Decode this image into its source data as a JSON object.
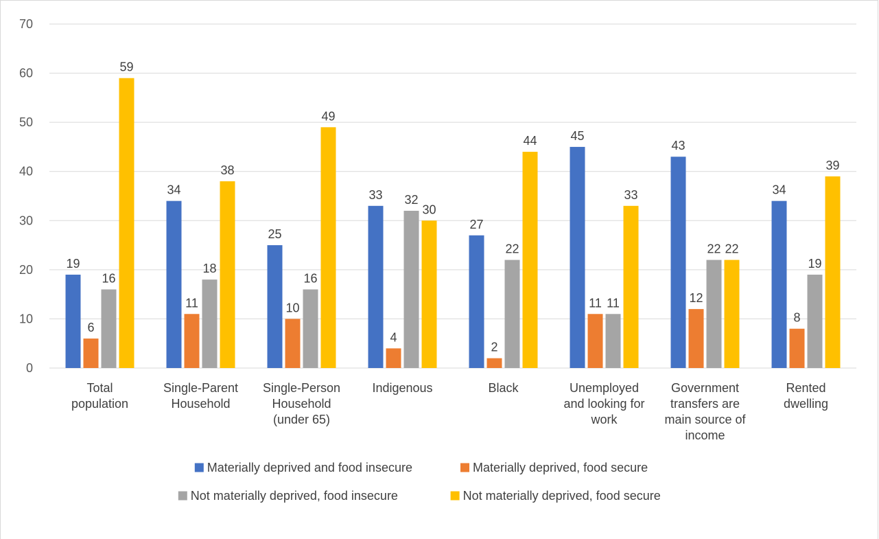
{
  "chart_data": {
    "type": "bar",
    "title": "",
    "xlabel": "",
    "ylabel": "",
    "ylim": [
      0,
      70
    ],
    "yticks": [
      0,
      10,
      20,
      30,
      40,
      50,
      60,
      70
    ],
    "grid": true,
    "legend_position": "bottom",
    "categories": [
      [
        "Total",
        "population"
      ],
      [
        "Single-Parent",
        "Household"
      ],
      [
        "Single-Person",
        "Household",
        "(under 65)"
      ],
      [
        "Indigenous"
      ],
      [
        "Black"
      ],
      [
        "Unemployed",
        "and looking for",
        "work"
      ],
      [
        "Government",
        "transfers are",
        "main source of",
        "income"
      ],
      [
        "Rented",
        "dwelling"
      ]
    ],
    "series": [
      {
        "name": "Materially deprived and food insecure",
        "color": "#4472C4",
        "values": [
          19,
          34,
          25,
          33,
          27,
          45,
          43,
          34
        ]
      },
      {
        "name": "Materially deprived, food secure",
        "color": "#ED7D31",
        "values": [
          6,
          11,
          10,
          4,
          2,
          11,
          12,
          8
        ]
      },
      {
        "name": "Not materially deprived, food insecure",
        "color": "#A5A5A5",
        "values": [
          16,
          18,
          16,
          32,
          22,
          11,
          22,
          19
        ]
      },
      {
        "name": "Not materially deprived, food secure",
        "color": "#FFC000",
        "values": [
          59,
          38,
          49,
          30,
          44,
          33,
          22,
          39
        ]
      }
    ]
  }
}
